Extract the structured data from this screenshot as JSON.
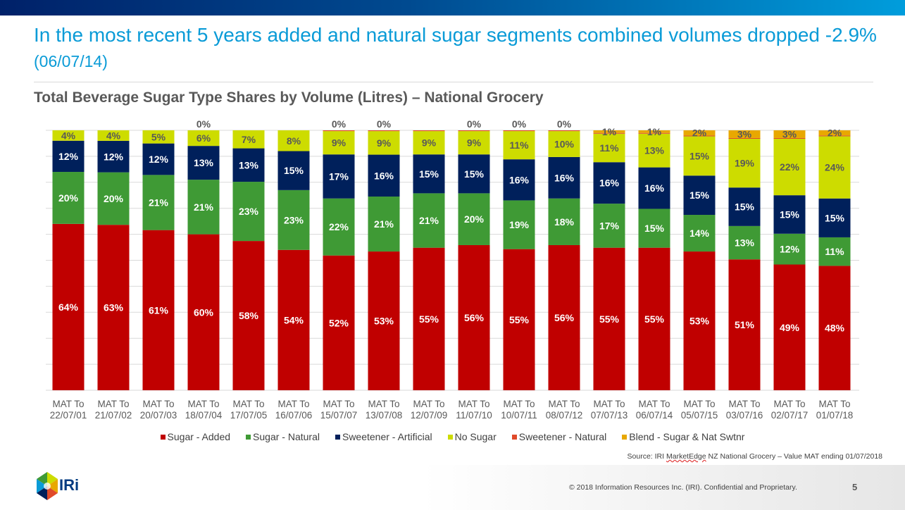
{
  "header": {
    "title": "In the most recent 5 years added and natural sugar segments combined volumes dropped -2.9%",
    "title_date": "(06/07/14)",
    "gradient": [
      "#002169",
      "#009ddc"
    ]
  },
  "chart_data": {
    "type": "bar",
    "stacked": "percent",
    "title": "Total Beverage Sugar Type Shares by Volume (Litres) – National Grocery",
    "ylim": [
      0,
      100
    ],
    "grid": true,
    "legend": "bottom",
    "categories": [
      "MAT To 22/07/01",
      "MAT To 21/07/02",
      "MAT To 20/07/03",
      "MAT To 18/07/04",
      "MAT To 17/07/05",
      "MAT To 16/07/06",
      "MAT To 15/07/07",
      "MAT To 13/07/08",
      "MAT To 12/07/09",
      "MAT To 11/07/10",
      "MAT To 10/07/11",
      "MAT To 08/07/12",
      "MAT To 07/07/13",
      "MAT To 06/07/14",
      "MAT To 05/07/15",
      "MAT To 03/07/16",
      "MAT To 02/07/17",
      "MAT To 01/07/18"
    ],
    "series": [
      {
        "name": "Sugar - Added",
        "color": "#c00000",
        "label_color": "#ffffff",
        "values": [
          64,
          63,
          61,
          60,
          58,
          54,
          52,
          53,
          55,
          56,
          55,
          56,
          55,
          55,
          53,
          51,
          49,
          48
        ],
        "labels": [
          "64%",
          "63%",
          "61%",
          "60%",
          "58%",
          "54%",
          "52%",
          "53%",
          "55%",
          "56%",
          "55%",
          "56%",
          "55%",
          "55%",
          "53%",
          "51%",
          "49%",
          "48%"
        ]
      },
      {
        "name": "Sugar - Natural",
        "color": "#3f9a35",
        "label_color": "#ffffff",
        "values": [
          20,
          20,
          21,
          21,
          23,
          23,
          22,
          21,
          21,
          20,
          19,
          18,
          17,
          15,
          14,
          13,
          12,
          11
        ],
        "labels": [
          "20%",
          "20%",
          "21%",
          "21%",
          "23%",
          "23%",
          "22%",
          "21%",
          "21%",
          "20%",
          "19%",
          "18%",
          "17%",
          "15%",
          "14%",
          "13%",
          "12%",
          "11%"
        ]
      },
      {
        "name": "Sweetener - Artificial",
        "color": "#00205b",
        "label_color": "#ffffff",
        "values": [
          12,
          12,
          12,
          13,
          13,
          15,
          17,
          16,
          15,
          15,
          16,
          16,
          16,
          16,
          15,
          15,
          15,
          15
        ],
        "labels": [
          "12%",
          "12%",
          "12%",
          "13%",
          "13%",
          "15%",
          "17%",
          "16%",
          "15%",
          "15%",
          "16%",
          "16%",
          "16%",
          "16%",
          "15%",
          "15%",
          "15%",
          "15%"
        ]
      },
      {
        "name": "No Sugar",
        "color": "#cddc00",
        "label_color": "#595959",
        "values": [
          4,
          4,
          5,
          6,
          7,
          8,
          9,
          9,
          9,
          9,
          11,
          10,
          11,
          13,
          15,
          19,
          22,
          24
        ],
        "labels": [
          "4%",
          "4%",
          "5%",
          "6%",
          "7%",
          "8%",
          "9%",
          "9%",
          "9%",
          "9%",
          "11%",
          "10%",
          "11%",
          "13%",
          "15%",
          "19%",
          "22%",
          "24%"
        ]
      },
      {
        "name": "Sweetener - Natural",
        "color": "#e04a2a",
        "label_color": "#595959",
        "values": [
          0,
          0,
          0,
          0,
          0,
          0,
          0.3,
          0.3,
          0.3,
          0.3,
          0.3,
          0.3,
          0.3,
          0.3,
          0.3,
          0.3,
          0.3,
          0.3
        ],
        "labels": [
          "",
          "",
          "",
          "0%",
          "",
          "",
          "0%",
          "0%",
          "",
          "0%",
          "0%",
          "0%",
          "",
          "",
          "",
          "",
          "",
          ""
        ]
      },
      {
        "name": "Blend - Sugar & Nat Swtnr",
        "color": "#e8a800",
        "label_color": "#595959",
        "values": [
          0,
          0,
          0,
          0,
          0,
          0,
          0,
          0,
          0,
          0,
          0,
          0,
          1,
          1,
          2,
          3,
          3,
          2
        ],
        "labels": [
          "",
          "",
          "",
          "",
          "",
          "",
          "",
          "",
          "",
          "",
          "",
          "",
          "1%",
          "1%",
          "2%",
          "3%",
          "3%",
          "2%"
        ]
      }
    ]
  },
  "footer": {
    "source_prefix": "Source: IRI ",
    "source_underlined": "MarketEdge",
    "source_suffix": " NZ National Grocery – Value MAT ending 01/07/2018",
    "copyright": "© 2018 Information Resources Inc. (IRI). Confidential and Proprietary.",
    "page_number": "5",
    "logo_text": "IRi"
  }
}
